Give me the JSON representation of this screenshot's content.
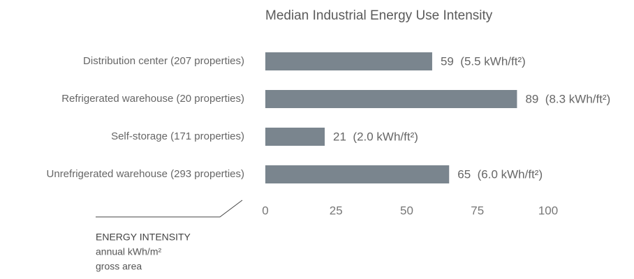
{
  "chart_data": {
    "type": "hbar",
    "title": "Median Industrial Energy Use Intensity",
    "categories": [
      "Distribution center (207 properties)",
      "Refrigerated warehouse (20 properties)",
      "Self-storage (171 properties)",
      "Unrefrigerated warehouse (293 properties)"
    ],
    "values": [
      59,
      89,
      21,
      65
    ],
    "value_labels": [
      "59  (5.5 kWh/ft²)",
      "89  (8.3 kWh/ft²)",
      "21  (2.0 kWh/ft²)",
      "65  (6.0 kWh/ft²)"
    ],
    "color": "#7a858e",
    "xlim": [
      0,
      100
    ],
    "xticks": [
      0,
      25,
      50,
      75,
      100
    ],
    "axis_note": {
      "title": "ENERGY INTENSITY",
      "lines": [
        "annual kWh/m²",
        "gross area"
      ]
    }
  }
}
